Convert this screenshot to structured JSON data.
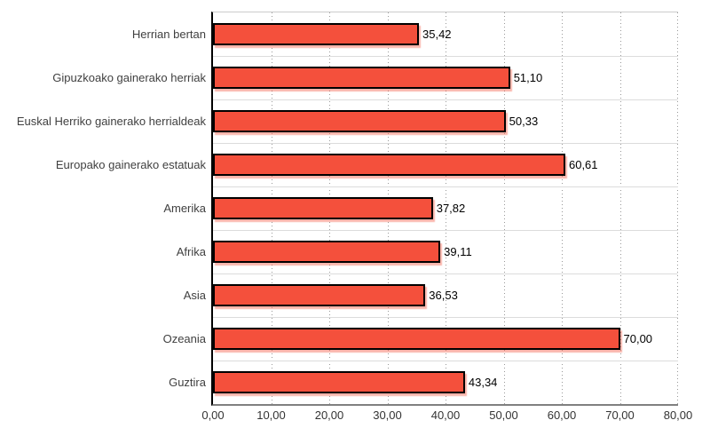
{
  "chart_data": {
    "type": "bar",
    "orientation": "horizontal",
    "title": "",
    "xlabel": "",
    "ylabel": "",
    "xlim": [
      0,
      80
    ],
    "grid": "vertical-dotted",
    "legend": "none",
    "categories": [
      "Herrian bertan",
      "Gipuzkoako gainerako herriak",
      "Euskal Herriko gainerako herrialdeak",
      "Europako gainerako estatuak",
      "Amerika",
      "Afrika",
      "Asia",
      "Ozeania",
      "Guztira"
    ],
    "values": [
      35.42,
      51.1,
      50.33,
      60.61,
      37.82,
      39.11,
      36.53,
      70.0,
      43.34
    ],
    "value_labels": [
      "35,42",
      "51,10",
      "50,33",
      "60,61",
      "37,82",
      "39,11",
      "36,53",
      "70,00",
      "43,34"
    ],
    "x_ticks": [
      0,
      10,
      20,
      30,
      40,
      50,
      60,
      70,
      80
    ],
    "x_tick_labels": [
      "0,00",
      "10,00",
      "20,00",
      "30,00",
      "40,00",
      "50,00",
      "60,00",
      "70,00",
      "80,00"
    ],
    "colors": {
      "bar_fill": "#F4503C",
      "bar_border": "#000000",
      "bar_shadow": "#F8AFA0",
      "gridline": "#999999",
      "band_separator": "#DCDCDC",
      "plot_top_border": "#CCCCCC",
      "y_axis": "#000000",
      "x_axis": "#808080",
      "category_text": "#404040",
      "value_text": "#000000",
      "tick_text": "#333333"
    }
  }
}
